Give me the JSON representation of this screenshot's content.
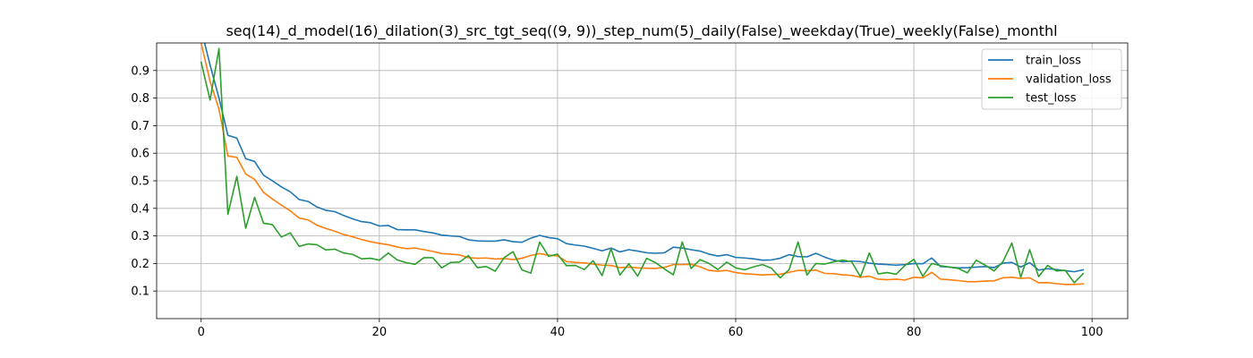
{
  "chart_data": {
    "type": "line",
    "title": "seq(14)_d_model(16)_dilation(3)_src_tgt_seq((9, 9))_step_num(5)_daily(False)_weekday(True)_weekly(False)_monthl",
    "xlabel": "",
    "ylabel": "",
    "xlim": [
      -5,
      104
    ],
    "ylim": [
      0.0,
      1.0
    ],
    "xticks": [
      0,
      20,
      40,
      60,
      80,
      100
    ],
    "yticks": [
      0.1,
      0.2,
      0.3,
      0.4,
      0.5,
      0.6,
      0.7,
      0.8,
      0.9
    ],
    "grid": true,
    "legend": "top-right",
    "x": [
      0,
      1,
      2,
      3,
      4,
      5,
      6,
      7,
      8,
      9,
      10,
      11,
      12,
      13,
      14,
      15,
      16,
      17,
      18,
      19,
      20,
      21,
      22,
      23,
      24,
      25,
      26,
      27,
      28,
      29,
      30,
      31,
      32,
      33,
      34,
      35,
      36,
      37,
      38,
      39,
      40,
      41,
      42,
      43,
      44,
      45,
      46,
      47,
      48,
      49,
      50,
      51,
      52,
      53,
      54,
      55,
      56,
      57,
      58,
      59,
      60,
      61,
      62,
      63,
      64,
      65,
      66,
      67,
      68,
      69,
      70,
      71,
      72,
      73,
      74,
      75,
      76,
      77,
      78,
      79,
      80,
      81,
      82,
      83,
      84,
      85,
      86,
      87,
      88,
      89,
      90,
      91,
      92,
      93,
      94,
      95,
      96,
      97,
      98,
      99
    ],
    "series": [
      {
        "name": "train_loss",
        "color": "#1f77b4",
        "values": [
          1.05,
          0.92,
          0.8,
          0.665,
          0.655,
          0.58,
          0.57,
          0.52,
          0.5,
          0.478,
          0.46,
          0.432,
          0.425,
          0.405,
          0.393,
          0.388,
          0.374,
          0.362,
          0.352,
          0.348,
          0.336,
          0.338,
          0.323,
          0.322,
          0.322,
          0.316,
          0.311,
          0.303,
          0.3,
          0.298,
          0.286,
          0.282,
          0.281,
          0.281,
          0.286,
          0.279,
          0.277,
          0.292,
          0.302,
          0.294,
          0.29,
          0.272,
          0.267,
          0.263,
          0.255,
          0.246,
          0.256,
          0.242,
          0.25,
          0.245,
          0.239,
          0.237,
          0.239,
          0.259,
          0.256,
          0.25,
          0.245,
          0.234,
          0.227,
          0.232,
          0.222,
          0.22,
          0.217,
          0.212,
          0.213,
          0.219,
          0.232,
          0.225,
          0.224,
          0.237,
          0.223,
          0.212,
          0.206,
          0.209,
          0.207,
          0.201,
          0.198,
          0.196,
          0.194,
          0.196,
          0.2,
          0.199,
          0.22,
          0.189,
          0.187,
          0.184,
          0.185,
          0.187,
          0.189,
          0.185,
          0.201,
          0.204,
          0.187,
          0.203,
          0.176,
          0.181,
          0.178,
          0.174,
          0.17,
          0.177
        ]
      },
      {
        "name": "validation_loss",
        "color": "#ff7f0e",
        "values": [
          1.0,
          0.86,
          0.76,
          0.59,
          0.585,
          0.525,
          0.505,
          0.458,
          0.434,
          0.412,
          0.391,
          0.365,
          0.358,
          0.339,
          0.327,
          0.317,
          0.305,
          0.297,
          0.287,
          0.279,
          0.273,
          0.268,
          0.26,
          0.254,
          0.256,
          0.25,
          0.244,
          0.236,
          0.234,
          0.231,
          0.221,
          0.219,
          0.22,
          0.216,
          0.218,
          0.214,
          0.219,
          0.229,
          0.236,
          0.23,
          0.228,
          0.207,
          0.204,
          0.202,
          0.198,
          0.194,
          0.193,
          0.185,
          0.187,
          0.184,
          0.183,
          0.182,
          0.186,
          0.196,
          0.196,
          0.197,
          0.188,
          0.175,
          0.172,
          0.175,
          0.167,
          0.163,
          0.161,
          0.158,
          0.16,
          0.161,
          0.168,
          0.175,
          0.174,
          0.176,
          0.164,
          0.163,
          0.159,
          0.157,
          0.15,
          0.154,
          0.143,
          0.141,
          0.143,
          0.14,
          0.15,
          0.148,
          0.168,
          0.143,
          0.141,
          0.138,
          0.134,
          0.134,
          0.136,
          0.137,
          0.148,
          0.15,
          0.146,
          0.148,
          0.13,
          0.131,
          0.127,
          0.124,
          0.124,
          0.126
        ]
      },
      {
        "name": "test_loss",
        "color": "#2ca02c",
        "values": [
          0.93,
          0.793,
          0.98,
          0.378,
          0.516,
          0.328,
          0.44,
          0.346,
          0.341,
          0.296,
          0.311,
          0.262,
          0.271,
          0.268,
          0.249,
          0.252,
          0.238,
          0.233,
          0.217,
          0.219,
          0.212,
          0.238,
          0.213,
          0.203,
          0.197,
          0.221,
          0.221,
          0.184,
          0.204,
          0.205,
          0.229,
          0.185,
          0.189,
          0.172,
          0.221,
          0.243,
          0.177,
          0.165,
          0.278,
          0.226,
          0.234,
          0.192,
          0.193,
          0.178,
          0.21,
          0.156,
          0.254,
          0.158,
          0.199,
          0.154,
          0.219,
          0.203,
          0.18,
          0.159,
          0.278,
          0.182,
          0.214,
          0.2,
          0.178,
          0.205,
          0.184,
          0.177,
          0.188,
          0.196,
          0.183,
          0.148,
          0.178,
          0.278,
          0.158,
          0.2,
          0.198,
          0.206,
          0.212,
          0.207,
          0.152,
          0.238,
          0.162,
          0.167,
          0.161,
          0.193,
          0.215,
          0.154,
          0.2,
          0.192,
          0.187,
          0.182,
          0.166,
          0.212,
          0.194,
          0.173,
          0.207,
          0.274,
          0.15,
          0.25,
          0.152,
          0.193,
          0.173,
          0.175,
          0.13,
          0.163
        ]
      }
    ]
  }
}
